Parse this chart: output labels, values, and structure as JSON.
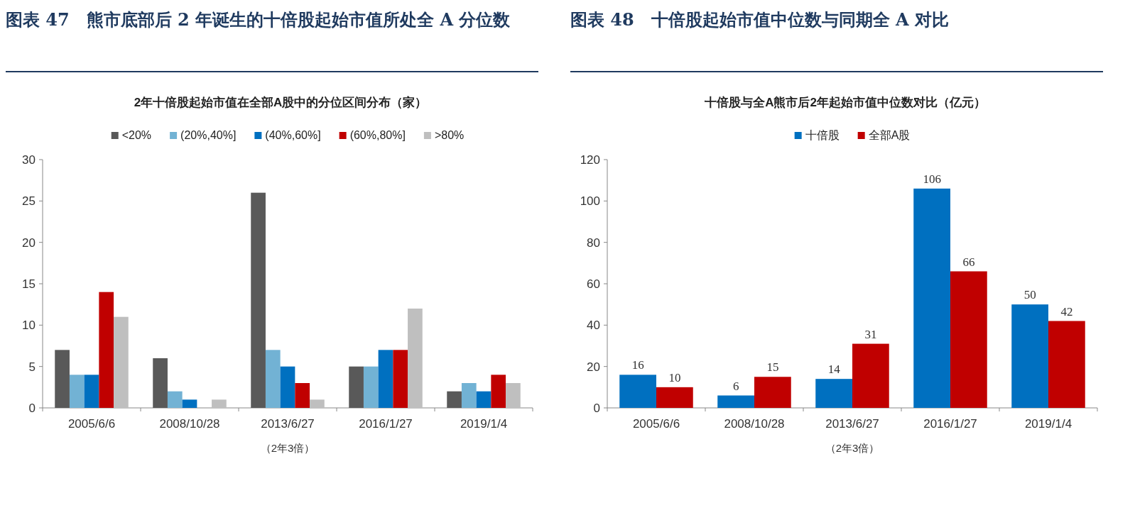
{
  "chart_data": [
    {
      "type": "bar",
      "title": "图表 47　熊市底部后 2 年诞生的十倍股起始市值所处全 A 分位数",
      "subtitle": "2年十倍股起始市值在全部A股中的分位区间分布（家）",
      "xlabel": "（2年3倍）",
      "categories": [
        "2005/6/6",
        "2008/10/28",
        "2013/6/27",
        "2016/1/27",
        "2019/1/4"
      ],
      "series": [
        {
          "name": "<20%",
          "color": "#595959",
          "values": [
            7,
            6,
            26,
            5,
            2
          ]
        },
        {
          "name": "(20%,40%]",
          "color": "#72b2d4",
          "values": [
            4,
            2,
            7,
            5,
            3
          ]
        },
        {
          "name": "(40%,60%]",
          "color": "#0070c0",
          "values": [
            4,
            1,
            5,
            7,
            2
          ]
        },
        {
          "name": "(60%,80%]",
          "color": "#c00000",
          "values": [
            14,
            0,
            3,
            7,
            4
          ]
        },
        {
          "name": ">80%",
          "color": "#bfbfbf",
          "values": [
            11,
            1,
            1,
            12,
            3
          ]
        }
      ],
      "ylim": [
        0,
        30
      ],
      "yticks": [
        0,
        5,
        10,
        15,
        20,
        25,
        30
      ],
      "legend": "top",
      "grid": false
    },
    {
      "type": "bar",
      "title": "图表 48　十倍股起始市值中位数与同期全 A 对比",
      "subtitle": "十倍股与全A熊市后2年起始市值中位数对比（亿元）",
      "xlabel": "（2年3倍）",
      "categories": [
        "2005/6/6",
        "2008/10/28",
        "2013/6/27",
        "2016/1/27",
        "2019/1/4"
      ],
      "series": [
        {
          "name": "十倍股",
          "color": "#0070c0",
          "values": [
            16,
            6,
            14,
            106,
            50
          ]
        },
        {
          "name": "全部A股",
          "color": "#c00000",
          "values": [
            10,
            15,
            31,
            66,
            42
          ]
        }
      ],
      "ylim": [
        0,
        120
      ],
      "yticks": [
        0,
        20,
        40,
        60,
        80,
        100,
        120
      ],
      "legend": "top",
      "grid": false,
      "data_labels": true
    }
  ]
}
